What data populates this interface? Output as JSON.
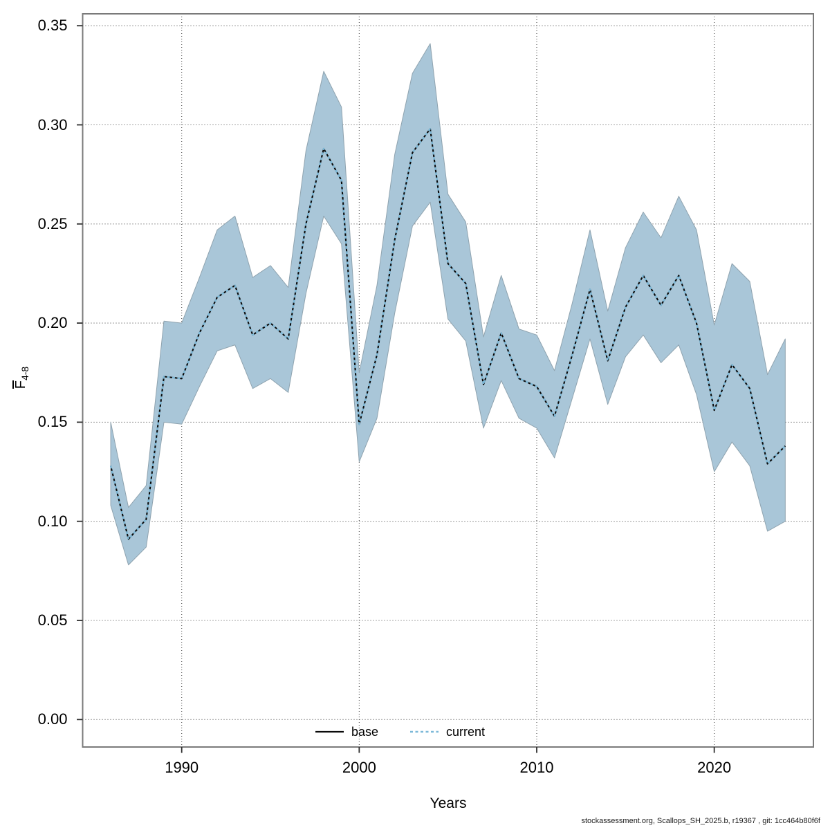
{
  "figure": {
    "xlabel": "Years",
    "ylabel_main": "F",
    "ylabel_sub": "4-8",
    "footer": "stockassessment.org, Scallops_SH_2025.b, r19367 , git: 1cc464b80f6f",
    "legend": [
      {
        "label": "base",
        "style": "solid",
        "color": "#0a0a0a"
      },
      {
        "label": "current",
        "style": "dotted",
        "color": "#7db9d8"
      }
    ]
  },
  "colors": {
    "band_fill": "#a9c6d8",
    "band_edge": "#8fa3af",
    "base_line": "#0a0a0a",
    "current_line": "#7db9d8",
    "grid": "#4a4a4a",
    "frame": "#7a7a7a",
    "tick": "#2f2f2f"
  },
  "chart_data": {
    "type": "line",
    "title": "",
    "xlabel": "Years",
    "ylabel": "Fbar(4-8)",
    "grid": true,
    "legend_position": "bottom-center",
    "xlim": [
      1984.5,
      2025.5
    ],
    "ylim": [
      0,
      0.37
    ],
    "xticks": [
      {
        "v": 1990,
        "label": "1990"
      },
      {
        "v": 2000,
        "label": "2000"
      },
      {
        "v": 2010,
        "label": "2010"
      },
      {
        "v": 2020,
        "label": "2020"
      }
    ],
    "yticks": [
      {
        "v": 0.35,
        "label": "0.35"
      },
      {
        "v": 0.3,
        "label": "0.30"
      },
      {
        "v": 0.25,
        "label": "0.25"
      },
      {
        "v": 0.2,
        "label": "0.20"
      },
      {
        "v": 0.15,
        "label": "0.15"
      },
      {
        "v": 0.1,
        "label": "0.10"
      },
      {
        "v": 0.05,
        "label": "0.05"
      },
      {
        "v": 0.0,
        "label": "0.00"
      }
    ],
    "x": [
      1986,
      1987,
      1988,
      1989,
      1990,
      1991,
      1992,
      1993,
      1994,
      1995,
      1996,
      1997,
      1998,
      1999,
      2000,
      2001,
      2002,
      2003,
      2004,
      2005,
      2006,
      2007,
      2008,
      2009,
      2010,
      2011,
      2012,
      2013,
      2014,
      2015,
      2016,
      2017,
      2018,
      2019,
      2020,
      2021,
      2022,
      2023,
      2024
    ],
    "series": [
      {
        "name": "base",
        "style": "solid",
        "values": [
          0.128,
          0.091,
          0.101,
          0.173,
          0.172,
          0.195,
          0.213,
          0.219,
          0.194,
          0.2,
          0.192,
          0.25,
          0.288,
          0.272,
          0.149,
          0.184,
          0.242,
          0.286,
          0.298,
          0.23,
          0.22,
          0.169,
          0.195,
          0.172,
          0.168,
          0.153,
          0.184,
          0.217,
          0.181,
          0.208,
          0.224,
          0.209,
          0.224,
          0.2,
          0.156,
          0.179,
          0.167,
          0.129,
          0.138
        ]
      },
      {
        "name": "current",
        "style": "dotted",
        "values": [
          0.128,
          0.091,
          0.101,
          0.173,
          0.172,
          0.195,
          0.213,
          0.219,
          0.194,
          0.2,
          0.192,
          0.25,
          0.288,
          0.272,
          0.149,
          0.184,
          0.242,
          0.286,
          0.298,
          0.23,
          0.22,
          0.169,
          0.195,
          0.172,
          0.168,
          0.153,
          0.184,
          0.217,
          0.181,
          0.208,
          0.224,
          0.209,
          0.224,
          0.2,
          0.156,
          0.179,
          0.167,
          0.129,
          0.138
        ]
      }
    ],
    "band": {
      "name": "current confidence interval",
      "lower": [
        0.108,
        0.078,
        0.087,
        0.15,
        0.149,
        0.168,
        0.186,
        0.189,
        0.167,
        0.172,
        0.165,
        0.215,
        0.254,
        0.24,
        0.13,
        0.152,
        0.205,
        0.249,
        0.261,
        0.202,
        0.191,
        0.147,
        0.171,
        0.152,
        0.147,
        0.132,
        0.162,
        0.192,
        0.159,
        0.183,
        0.194,
        0.18,
        0.189,
        0.164,
        0.125,
        0.14,
        0.128,
        0.095,
        0.1
      ],
      "upper": [
        0.15,
        0.107,
        0.118,
        0.201,
        0.2,
        0.223,
        0.247,
        0.254,
        0.223,
        0.229,
        0.218,
        0.287,
        0.327,
        0.309,
        0.175,
        0.219,
        0.285,
        0.326,
        0.341,
        0.265,
        0.251,
        0.193,
        0.224,
        0.197,
        0.194,
        0.176,
        0.21,
        0.247,
        0.206,
        0.238,
        0.256,
        0.243,
        0.264,
        0.247,
        0.199,
        0.23,
        0.221,
        0.174,
        0.192
      ]
    }
  }
}
